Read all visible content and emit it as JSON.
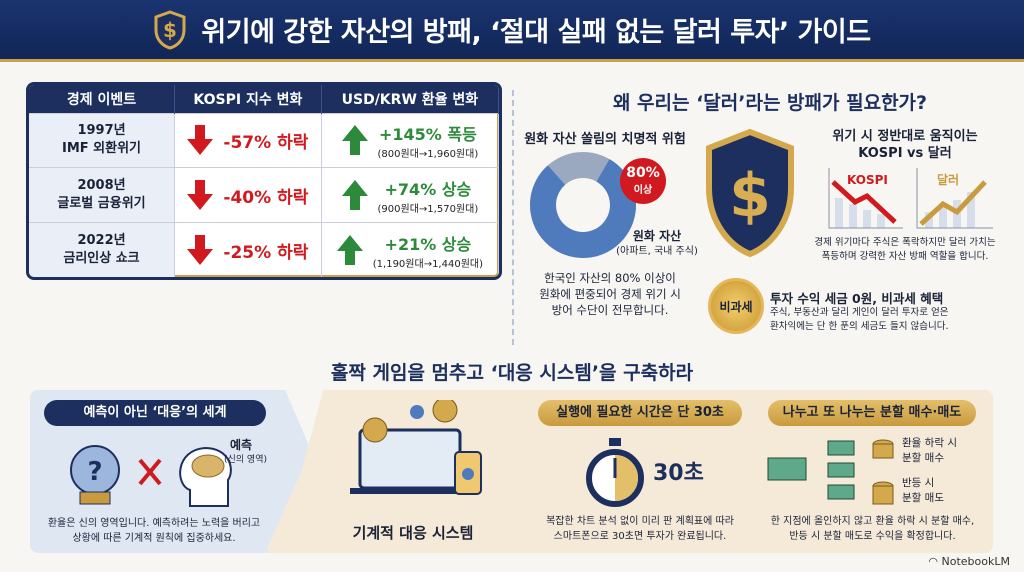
{
  "header": {
    "title": "위기에 강한 자산의 방패, ‘절대 실패 없는 달러 투자’ 가이드"
  },
  "table": {
    "columns": [
      "경제 이벤트",
      "KOSPI 지수 변화",
      "USD/KRW 환율 변화"
    ],
    "rows": [
      {
        "year": "1997년",
        "event": "IMF 외환위기",
        "kospi": "-57% 하락",
        "usd": "+145% 폭등",
        "range": "(800원대→1,960원대)"
      },
      {
        "year": "2008년",
        "event": "글로벌 금융위기",
        "kospi": "-40% 하락",
        "usd": "+74% 상승",
        "range": "(900원대→1,570원대)"
      },
      {
        "year": "2022년",
        "event": "금리인상 쇼크",
        "kospi": "-25% 하락",
        "usd": "+21% 상승",
        "range": "(1,190원대→1,440원대)"
      }
    ]
  },
  "why": {
    "title": "왜 우리는 ‘달러’라는 방패가 필요한가?",
    "risk_title": "원화 자산 쏠림의 치명적 위험",
    "badge_pct": "80%",
    "badge_sub": "이상",
    "donut_label": "원화 자산",
    "donut_sub": "(아파트, 국내 주식)",
    "donut_share": 0.8,
    "risk_text": [
      "한국인 자산의 80% 이상이",
      "원화에 편중되어 경제 위기 시",
      "방어 수단이 전무합니다."
    ],
    "opp_title": [
      "위기 시 정반대로 움직이는",
      "KOSPI vs 달러"
    ],
    "kospi_label": "KOSPI",
    "dollar_label": "달러",
    "opp_text": [
      "경제 위기마다 주식은 폭락하지만 달러 가치는",
      "폭등하며 강력한 자산 방패 역할을 합니다."
    ],
    "tax_seal": "비과세",
    "tax_title": "투자 수익 세금 0원, 비과세 혜택",
    "tax_text": [
      "주식, 부동산과 달리 게인이 달러 투자로 얻은",
      "환차익에는 단 한 푼의 세금도 들지 않습니다."
    ]
  },
  "system": {
    "title": "홀짝 게임을 멈추고 ‘대응 시스템’을 구축하라",
    "predict_pill": "예측이 아닌 ‘대응’의 세계",
    "predict_label": "예측",
    "predict_sub": "(신의 영역)",
    "predict_text": [
      "환율은 신의 영역입니다. 예측하려는 노력을 버리고",
      "상황에 따른 기계적 원칙에 집중하세요."
    ],
    "machine_label": "기계적 대응 시스템",
    "time_pill": "실행에 필요한 시간은 단 30초",
    "time_value": "30초",
    "time_text": [
      "복잡한 차트 분석 없이 미리 판 계획표에 따라",
      "스마트폰으로 30초면 투자가 완료됩니다."
    ],
    "split_pill": "나누고 또 나누는 분할 매수·매도",
    "buy_label": [
      "환율 하락 시",
      "분할 매수"
    ],
    "sell_label": [
      "반등 시",
      "분할 매도"
    ],
    "split_text": [
      "한 지점에 올인하지 않고 환율 하락 시 분할 매수,",
      "반등 시 분할 매도로 수익을 확정합니다."
    ]
  },
  "footer": {
    "brand": "NotebookLM"
  }
}
